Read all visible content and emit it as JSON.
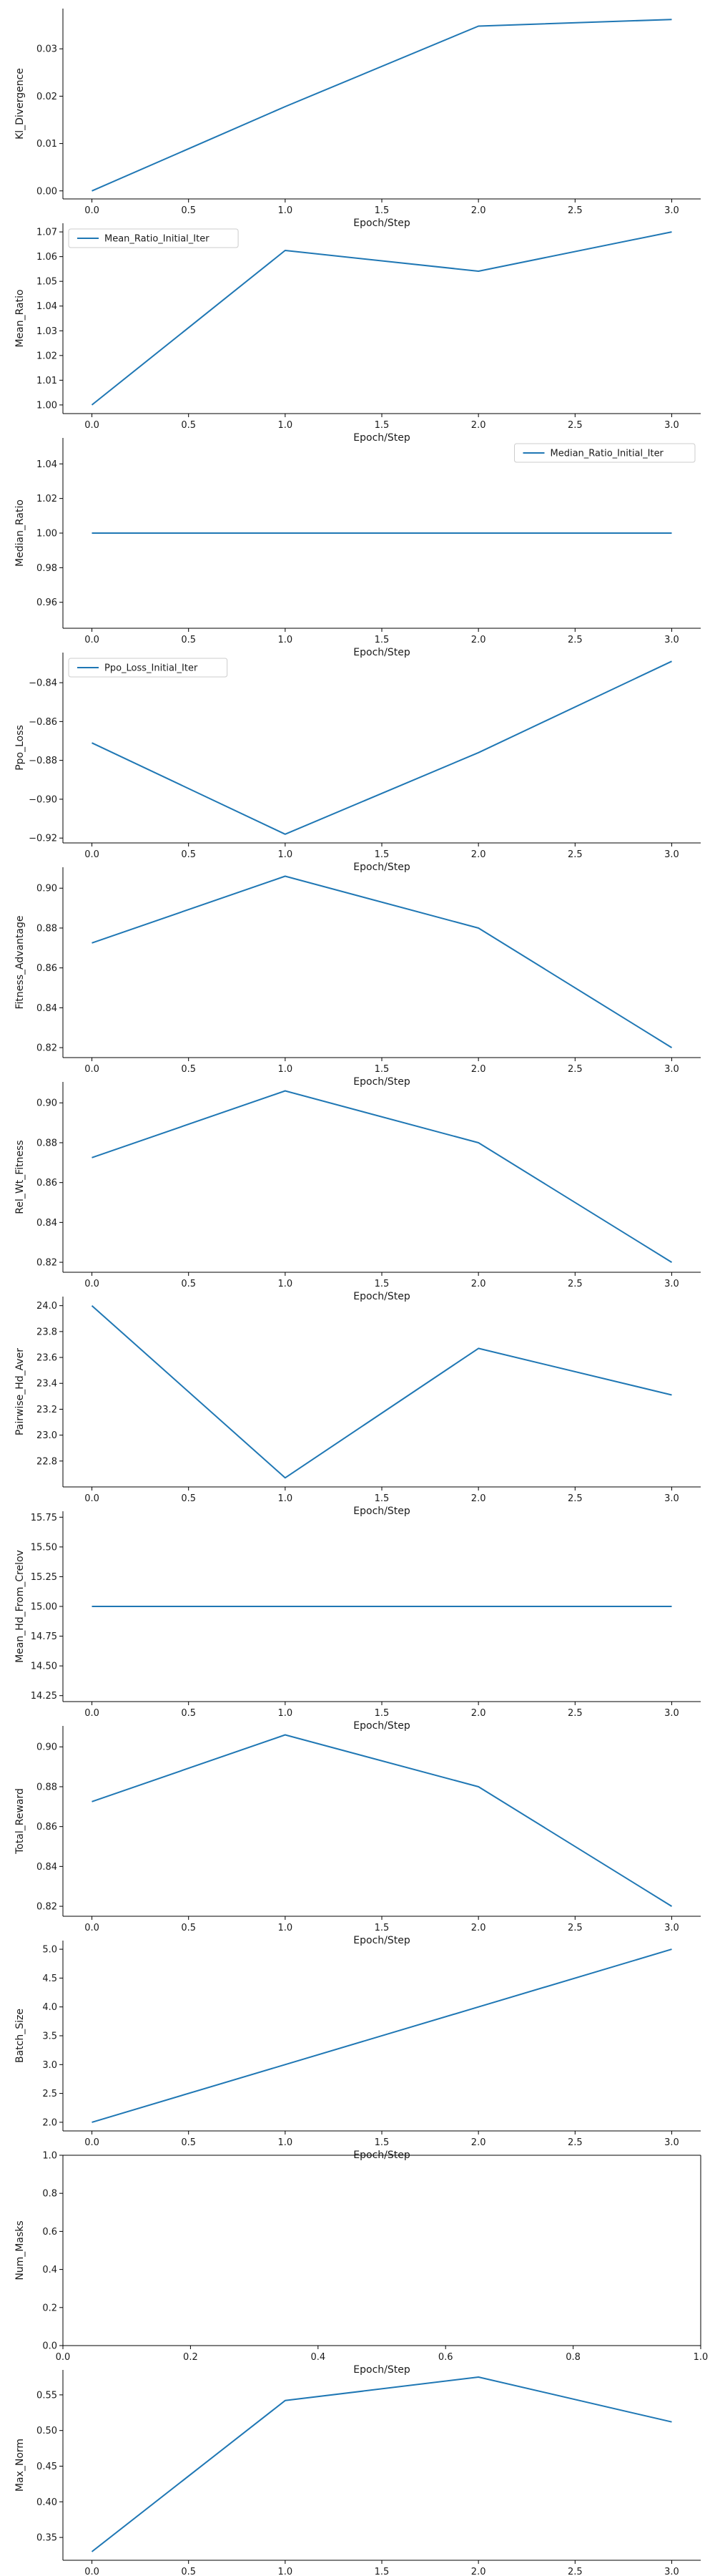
{
  "chart_data": [
    {
      "type": "line",
      "xlabel": "Epoch/Step",
      "ylabel": "Kl_Divergence",
      "x": [
        0,
        1,
        2,
        3
      ],
      "xlim": [
        -0.15,
        3.15
      ],
      "xticks": [
        0,
        0.5,
        1,
        1.5,
        2,
        2.5,
        3
      ],
      "ylim": [
        -0.0017,
        0.0385
      ],
      "yticks": [
        0,
        0.01,
        0.02,
        0.03
      ],
      "yticklabels": [
        "0.00",
        "0.01",
        "0.02",
        "0.03"
      ],
      "series": [
        {
          "values": [
            0.0,
            0.0178,
            0.0348,
            0.0362
          ]
        }
      ],
      "color": "#1f77b4",
      "grid": false
    },
    {
      "type": "line",
      "xlabel": "Epoch/Step",
      "ylabel": "Mean_Ratio",
      "x": [
        0,
        1,
        2,
        3
      ],
      "xlim": [
        -0.15,
        3.15
      ],
      "xticks": [
        0,
        0.5,
        1,
        1.5,
        2,
        2.5,
        3
      ],
      "ylim": [
        0.9965,
        1.0735
      ],
      "yticks": [
        1.0,
        1.01,
        1.02,
        1.03,
        1.04,
        1.05,
        1.06,
        1.07
      ],
      "yticklabels": [
        "1.00",
        "1.01",
        "1.02",
        "1.03",
        "1.04",
        "1.05",
        "1.06",
        "1.07"
      ],
      "series": [
        {
          "name": "Mean_Ratio_Initial_Iter",
          "values": [
            1.0,
            1.0625,
            1.0541,
            1.07
          ]
        }
      ],
      "legend": "upper left",
      "color": "#1f77b4",
      "grid": false
    },
    {
      "type": "line",
      "xlabel": "Epoch/Step",
      "ylabel": "Median_Ratio",
      "x": [
        0,
        1,
        2,
        3
      ],
      "xlim": [
        -0.15,
        3.15
      ],
      "xticks": [
        0,
        0.5,
        1,
        1.5,
        2,
        2.5,
        3
      ],
      "ylim": [
        0.945,
        1.055
      ],
      "yticks": [
        0.96,
        0.98,
        1.0,
        1.02,
        1.04
      ],
      "yticklabels": [
        "0.96",
        "0.98",
        "1.00",
        "1.02",
        "1.04"
      ],
      "series": [
        {
          "name": "Median_Ratio_Initial_Iter",
          "values": [
            1.0,
            1.0,
            1.0,
            1.0
          ]
        }
      ],
      "legend": "upper right",
      "color": "#1f77b4",
      "grid": false
    },
    {
      "type": "line",
      "xlabel": "Epoch/Step",
      "ylabel": "Ppo_Loss",
      "x": [
        0,
        1,
        2,
        3
      ],
      "xlim": [
        -0.15,
        3.15
      ],
      "xticks": [
        0,
        0.5,
        1,
        1.5,
        2,
        2.5,
        3
      ],
      "ylim": [
        -0.9225,
        -0.8245
      ],
      "yticks": [
        -0.92,
        -0.9,
        -0.88,
        -0.86,
        -0.84
      ],
      "yticklabels": [
        "−0.92",
        "−0.90",
        "−0.88",
        "−0.86",
        "−0.84"
      ],
      "series": [
        {
          "name": "Ppo_Loss_Initial_Iter",
          "values": [
            -0.871,
            -0.918,
            -0.876,
            -0.829
          ]
        }
      ],
      "legend": "upper left",
      "color": "#1f77b4",
      "grid": false
    },
    {
      "type": "line",
      "xlabel": "Epoch/Step",
      "ylabel": "Fitness_Advantage",
      "x": [
        0,
        1,
        2,
        3
      ],
      "xlim": [
        -0.15,
        3.15
      ],
      "xticks": [
        0,
        0.5,
        1,
        1.5,
        2,
        2.5,
        3
      ],
      "ylim": [
        0.815,
        0.9105
      ],
      "yticks": [
        0.82,
        0.84,
        0.86,
        0.88,
        0.9
      ],
      "yticklabels": [
        "0.82",
        "0.84",
        "0.86",
        "0.88",
        "0.90"
      ],
      "series": [
        {
          "values": [
            0.8725,
            0.906,
            0.88,
            0.82
          ]
        }
      ],
      "color": "#1f77b4",
      "grid": false
    },
    {
      "type": "line",
      "xlabel": "Epoch/Step",
      "ylabel": "Rel_Wt_Fitness",
      "x": [
        0,
        1,
        2,
        3
      ],
      "xlim": [
        -0.15,
        3.15
      ],
      "xticks": [
        0,
        0.5,
        1,
        1.5,
        2,
        2.5,
        3
      ],
      "ylim": [
        0.815,
        0.9105
      ],
      "yticks": [
        0.82,
        0.84,
        0.86,
        0.88,
        0.9
      ],
      "yticklabels": [
        "0.82",
        "0.84",
        "0.86",
        "0.88",
        "0.90"
      ],
      "series": [
        {
          "values": [
            0.8725,
            0.906,
            0.88,
            0.82
          ]
        }
      ],
      "color": "#1f77b4",
      "grid": false
    },
    {
      "type": "line",
      "xlabel": "Epoch/Step",
      "ylabel": "Pairwise_Hd_Aver",
      "x": [
        0,
        1,
        2,
        3
      ],
      "xlim": [
        -0.15,
        3.15
      ],
      "xticks": [
        0,
        0.5,
        1,
        1.5,
        2,
        2.5,
        3
      ],
      "ylim": [
        22.6,
        24.07
      ],
      "yticks": [
        22.8,
        23.0,
        23.2,
        23.4,
        23.6,
        23.8,
        24.0
      ],
      "yticklabels": [
        "22.8",
        "23.0",
        "23.2",
        "23.4",
        "23.6",
        "23.8",
        "24.0"
      ],
      "series": [
        {
          "values": [
            24.0,
            22.67,
            23.67,
            23.31
          ]
        }
      ],
      "color": "#1f77b4",
      "grid": false
    },
    {
      "type": "line",
      "xlabel": "Epoch/Step",
      "ylabel": "Mean_Hd_From_Crelov",
      "x": [
        0,
        1,
        2,
        3
      ],
      "xlim": [
        -0.15,
        3.15
      ],
      "xticks": [
        0,
        0.5,
        1,
        1.5,
        2,
        2.5,
        3
      ],
      "ylim": [
        14.2,
        15.8
      ],
      "yticks": [
        14.25,
        14.5,
        14.75,
        15.0,
        15.25,
        15.5,
        15.75
      ],
      "yticklabels": [
        "14.25",
        "14.50",
        "14.75",
        "15.00",
        "15.25",
        "15.50",
        "15.75"
      ],
      "series": [
        {
          "values": [
            15.0,
            15.0,
            15.0,
            15.0
          ]
        }
      ],
      "color": "#1f77b4",
      "grid": false
    },
    {
      "type": "line",
      "xlabel": "Epoch/Step",
      "ylabel": "Total_Reward",
      "x": [
        0,
        1,
        2,
        3
      ],
      "xlim": [
        -0.15,
        3.15
      ],
      "xticks": [
        0,
        0.5,
        1,
        1.5,
        2,
        2.5,
        3
      ],
      "ylim": [
        0.815,
        0.9105
      ],
      "yticks": [
        0.82,
        0.84,
        0.86,
        0.88,
        0.9
      ],
      "yticklabels": [
        "0.82",
        "0.84",
        "0.86",
        "0.88",
        "0.90"
      ],
      "series": [
        {
          "values": [
            0.8725,
            0.906,
            0.88,
            0.82
          ]
        }
      ],
      "color": "#1f77b4",
      "grid": false
    },
    {
      "type": "line",
      "xlabel": "Epoch/Step",
      "ylabel": "Batch_Size",
      "x": [
        0,
        1,
        2,
        3
      ],
      "xlim": [
        -0.15,
        3.15
      ],
      "xticks": [
        0,
        0.5,
        1,
        1.5,
        2,
        2.5,
        3
      ],
      "ylim": [
        1.85,
        5.15
      ],
      "yticks": [
        2.0,
        2.5,
        3.0,
        3.5,
        4.0,
        4.5,
        5.0
      ],
      "yticklabels": [
        "2.0",
        "2.5",
        "3.0",
        "3.5",
        "4.0",
        "4.5",
        "5.0"
      ],
      "series": [
        {
          "values": [
            2.0,
            3.0,
            4.0,
            5.0
          ]
        }
      ],
      "color": "#1f77b4",
      "grid": false
    },
    {
      "type": "line",
      "xlabel": "Epoch/Step",
      "ylabel": "Num_Masks",
      "x": [],
      "xlim": [
        0,
        1
      ],
      "xticks": [
        0,
        0.2,
        0.4,
        0.6,
        0.8,
        1.0
      ],
      "xticklabels": [
        "0.0",
        "0.2",
        "0.4",
        "0.6",
        "0.8",
        "1.0"
      ],
      "ylim": [
        0,
        1
      ],
      "yticks": [
        0,
        0.2,
        0.4,
        0.6,
        0.8,
        1.0
      ],
      "yticklabels": [
        "0.0",
        "0.2",
        "0.4",
        "0.6",
        "0.8",
        "1.0"
      ],
      "series": [],
      "spines": "full",
      "color": "#1f77b4",
      "grid": false
    },
    {
      "type": "line",
      "xlabel": "Epoch/Step",
      "ylabel": "Max_Norm",
      "x": [
        0,
        1,
        2,
        3
      ],
      "xlim": [
        -0.15,
        3.15
      ],
      "xticks": [
        0,
        0.5,
        1,
        1.5,
        2,
        2.5,
        3
      ],
      "ylim": [
        0.318,
        0.585
      ],
      "yticks": [
        0.35,
        0.4,
        0.45,
        0.5,
        0.55
      ],
      "yticklabels": [
        "0.35",
        "0.40",
        "0.45",
        "0.50",
        "0.55"
      ],
      "series": [
        {
          "values": [
            0.33,
            0.542,
            0.575,
            0.512
          ]
        }
      ],
      "color": "#1f77b4",
      "grid": false
    }
  ]
}
